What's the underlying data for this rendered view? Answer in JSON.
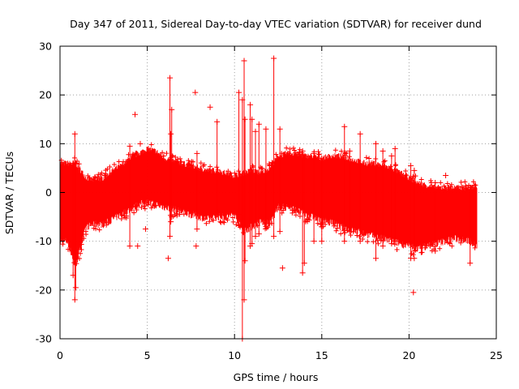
{
  "chart_data": {
    "type": "scatter",
    "title": "Day 347 of 2011, Sidereal Day-to-day VTEC variation (SDTVAR) for receiver dund",
    "xlabel": "GPS time / hours",
    "ylabel": "SDTVAR / TECUs",
    "xlim": [
      0,
      25
    ],
    "ylim": [
      -30,
      30
    ],
    "xticks": [
      0,
      5,
      10,
      15,
      20,
      25
    ],
    "yticks": [
      -30,
      -20,
      -10,
      0,
      10,
      20,
      30
    ],
    "xtick_labels": [
      "0",
      "5",
      "10",
      "15",
      "20",
      "25"
    ],
    "ytick_labels": [
      "-30",
      "-20",
      "-10",
      "0",
      "10",
      "20",
      "30"
    ],
    "grid": true,
    "marker": "+",
    "color": "#ff0000",
    "series": [
      {
        "name": "SDTVAR",
        "envelope": {
          "x": [
            0.0,
            0.4,
            0.9,
            1.5,
            2.0,
            2.5,
            3.0,
            3.5,
            4.0,
            4.5,
            5.0,
            5.5,
            6.0,
            6.5,
            7.0,
            7.5,
            8.0,
            8.5,
            9.0,
            9.5,
            10.0,
            10.5,
            11.0,
            11.5,
            12.0,
            12.5,
            13.0,
            13.5,
            14.0,
            14.5,
            15.0,
            15.5,
            16.0,
            16.5,
            17.0,
            17.5,
            18.0,
            18.5,
            19.0,
            19.5,
            20.0,
            20.5,
            21.0,
            21.5,
            22.0,
            22.5,
            23.0,
            23.5,
            23.9
          ],
          "upper": [
            6.0,
            6.0,
            6.0,
            3.0,
            2.5,
            3.0,
            4.5,
            5.5,
            7.0,
            8.0,
            9.0,
            8.5,
            7.0,
            6.5,
            6.0,
            5.5,
            5.0,
            4.5,
            4.5,
            4.0,
            3.5,
            4.0,
            4.5,
            4.0,
            5.0,
            7.5,
            8.0,
            8.0,
            7.5,
            7.5,
            7.0,
            7.5,
            7.5,
            7.0,
            6.5,
            6.0,
            6.0,
            5.5,
            5.0,
            4.0,
            3.0,
            2.0,
            1.5,
            1.0,
            1.0,
            1.0,
            1.0,
            1.0,
            1.5
          ],
          "lower": [
            -10.0,
            -10.0,
            -15.0,
            -7.0,
            -6.5,
            -6.5,
            -5.5,
            -4.5,
            -3.5,
            -2.5,
            -2.0,
            -2.5,
            -3.0,
            -3.5,
            -4.0,
            -4.5,
            -5.0,
            -5.5,
            -5.0,
            -5.0,
            -4.5,
            -8.0,
            -7.0,
            -6.0,
            -6.5,
            -3.0,
            -3.0,
            -3.5,
            -4.5,
            -5.0,
            -6.0,
            -6.0,
            -7.0,
            -7.5,
            -8.0,
            -8.5,
            -9.0,
            -9.5,
            -10.0,
            -10.5,
            -11.0,
            -11.5,
            -11.0,
            -10.5,
            -10.0,
            -9.5,
            -9.5,
            -10.0,
            -11.0
          ]
        },
        "spikes": [
          {
            "x": 0.85,
            "low": -22.0,
            "high": 12.0
          },
          {
            "x": 0.9,
            "low": -19.5,
            "high": 6.0
          },
          {
            "x": 0.75,
            "low": -17.0,
            "high": 6.0
          },
          {
            "x": 4.0,
            "low": -11.0,
            "high": 9.5
          },
          {
            "x": 6.3,
            "low": -9.0,
            "high": 23.5
          },
          {
            "x": 6.4,
            "low": -5.0,
            "high": 17.0
          },
          {
            "x": 6.35,
            "low": -6.0,
            "high": 12.0
          },
          {
            "x": 7.85,
            "low": -7.5,
            "high": 8.0
          },
          {
            "x": 9.0,
            "low": -4.0,
            "high": 14.5
          },
          {
            "x": 10.25,
            "low": -4.5,
            "high": 20.5
          },
          {
            "x": 10.45,
            "low": -30.0,
            "high": 19.0
          },
          {
            "x": 10.55,
            "low": -22.0,
            "high": 27.0
          },
          {
            "x": 10.6,
            "low": -14.0,
            "high": 15.0
          },
          {
            "x": 10.9,
            "low": -11.0,
            "high": 18.0
          },
          {
            "x": 11.0,
            "low": -10.5,
            "high": 15.0
          },
          {
            "x": 11.2,
            "low": -9.0,
            "high": 12.5
          },
          {
            "x": 11.4,
            "low": -8.5,
            "high": 14.0
          },
          {
            "x": 11.8,
            "low": -7.0,
            "high": 13.0
          },
          {
            "x": 12.25,
            "low": -9.0,
            "high": 27.5
          },
          {
            "x": 12.6,
            "low": -8.0,
            "high": 13.0
          },
          {
            "x": 13.9,
            "low": -16.5,
            "high": 8.5
          },
          {
            "x": 14.0,
            "low": -14.5,
            "high": 7.0
          },
          {
            "x": 14.55,
            "low": -10.0,
            "high": 8.0
          },
          {
            "x": 15.0,
            "low": -10.0,
            "high": 7.0
          },
          {
            "x": 16.3,
            "low": -10.0,
            "high": 13.5
          },
          {
            "x": 16.6,
            "low": -8.0,
            "high": 8.5
          },
          {
            "x": 17.2,
            "low": -10.0,
            "high": 12.0
          },
          {
            "x": 18.1,
            "low": -13.5,
            "high": 10.0
          },
          {
            "x": 18.5,
            "low": -11.0,
            "high": 8.5
          },
          {
            "x": 19.0,
            "low": -10.5,
            "high": 7.5
          },
          {
            "x": 19.2,
            "low": -10.0,
            "high": 9.0
          },
          {
            "x": 20.1,
            "low": -13.5,
            "high": 5.5
          },
          {
            "x": 20.3,
            "low": -12.0,
            "high": 4.5
          },
          {
            "x": 21.5,
            "low": -12.0,
            "high": 2.0
          },
          {
            "x": 23.5,
            "low": -14.5,
            "high": 1.0
          }
        ],
        "outliers": [
          {
            "x": 4.3,
            "y": 16.0
          },
          {
            "x": 4.45,
            "y": -11.0
          },
          {
            "x": 4.6,
            "y": 10.0
          },
          {
            "x": 4.9,
            "y": -7.5
          },
          {
            "x": 6.2,
            "y": -13.5
          },
          {
            "x": 7.75,
            "y": 20.5
          },
          {
            "x": 7.8,
            "y": -11.0
          },
          {
            "x": 8.6,
            "y": 17.5
          },
          {
            "x": 12.75,
            "y": -15.5
          },
          {
            "x": 20.25,
            "y": -20.5
          },
          {
            "x": 22.1,
            "y": 3.5
          },
          {
            "x": 20.3,
            "y": -13.5
          }
        ]
      }
    ]
  }
}
